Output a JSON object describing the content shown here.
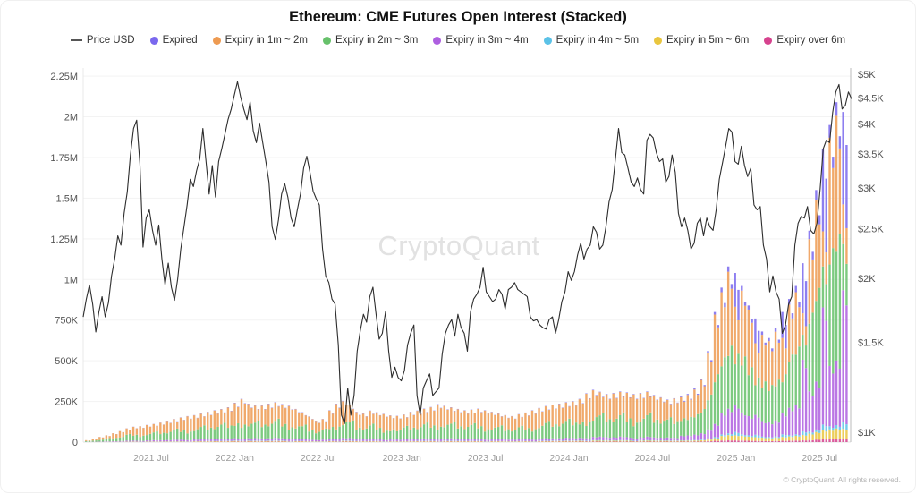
{
  "header": {
    "title": "Ethereum: CME Futures Open Interest (Stacked)"
  },
  "watermark": "CryptoQuant",
  "footer": {
    "copyright": "© CryptoQuant. All rights reserved."
  },
  "legend": [
    {
      "label": "Price USD",
      "type": "line",
      "color": "#4a4a4a"
    },
    {
      "label": "Expired",
      "type": "dot",
      "color": "#7a68ee"
    },
    {
      "label": "Expiry in 1m ~ 2m",
      "type": "dot",
      "color": "#ee9b52"
    },
    {
      "label": "Expiry in 2m ~ 3m",
      "type": "dot",
      "color": "#67c16b"
    },
    {
      "label": "Expiry in 3m ~ 4m",
      "type": "dot",
      "color": "#ae5fe0"
    },
    {
      "label": "Expiry in 4m ~ 5m",
      "type": "dot",
      "color": "#5bc2e7"
    },
    {
      "label": "Expiry in 5m ~ 6m",
      "type": "dot",
      "color": "#e9c63f"
    },
    {
      "label": "Expiry over 6m",
      "type": "dot",
      "color": "#d6428e"
    }
  ],
  "chart_data": {
    "type": "bar",
    "subtype": "stacked-bars-with-log-price-line",
    "title": "Ethereum: CME Futures Open Interest (Stacked)",
    "x_range": [
      "2021 Feb",
      "2025 Sep"
    ],
    "x_ticks": [
      "2021 Jul",
      "2022 Jan",
      "2022 Jul",
      "2023 Jan",
      "2023 Jul",
      "2024 Jan",
      "2024 Jul",
      "2025 Jan",
      "2025 Jul"
    ],
    "y_left": {
      "title": "Open Interest",
      "unit": "contracts",
      "ylim": [
        0,
        2250000
      ],
      "tick_labels": [
        "0",
        "250K",
        "500K",
        "750K",
        "1M",
        "1.25M",
        "1.5M",
        "1.75M",
        "2M",
        "2.25M"
      ],
      "tick_values_k": [
        0,
        250,
        500,
        750,
        1000,
        1250,
        1500,
        1750,
        2000,
        2250
      ]
    },
    "y_right": {
      "title": "Price USD",
      "scale": "log",
      "ylim": [
        950,
        5100
      ],
      "tick_labels": [
        "$1K",
        "$1.5K",
        "$2K",
        "$2.5K",
        "$3K",
        "$3.5K",
        "$4K",
        "$4.5K",
        "$5K"
      ],
      "tick_values_k": [
        1,
        1.5,
        2,
        2.5,
        3,
        3.5,
        4,
        4.5,
        5
      ]
    },
    "grid": "horizontal",
    "legend_position": "top",
    "series_names": [
      "Expired",
      "Expiry in 1m ~ 2m",
      "Expiry in 2m ~ 3m",
      "Expiry in 3m ~ 4m",
      "Expiry in 4m ~ 5m",
      "Expiry in 5m ~ 6m",
      "Expiry over 6m"
    ],
    "stack_order_bottom_to_top": [
      "Expiry over 6m",
      "Expiry in 5m ~ 6m",
      "Expiry in 4m ~ 5m",
      "Expiry in 3m ~ 4m",
      "Expiry in 2m ~ 3m",
      "Expiry in 1m ~ 2m",
      "Expired"
    ],
    "bars_format": "[total_K, pct_expired, pct_1m2m, pct_2m3m, pct_3m4m, pct_4m5m, pct_5m6m, pct_over6m] sampled biweekly Feb 2021 - Sep 2025",
    "bars": [
      [
        12,
        1,
        46,
        42,
        7,
        1,
        2,
        1
      ],
      [
        22,
        1,
        58,
        31,
        6,
        1,
        2,
        1
      ],
      [
        32,
        1,
        58,
        31,
        6,
        1,
        2,
        1
      ],
      [
        42,
        1,
        46,
        42,
        7,
        1,
        2,
        1
      ],
      [
        55,
        1,
        58,
        31,
        6,
        1,
        2,
        1
      ],
      [
        68,
        1,
        58,
        31,
        6,
        1,
        2,
        1
      ],
      [
        85,
        1,
        46,
        42,
        7,
        1,
        2,
        1
      ],
      [
        95,
        1,
        58,
        31,
        6,
        1,
        2,
        1
      ],
      [
        98,
        1,
        66,
        25,
        5,
        1,
        1,
        1
      ],
      [
        106,
        1,
        58,
        31,
        6,
        1,
        2,
        1
      ],
      [
        112,
        1,
        46,
        42,
        7,
        1,
        2,
        1
      ],
      [
        120,
        1,
        58,
        31,
        6,
        1,
        2,
        1
      ],
      [
        132,
        1,
        58,
        31,
        6,
        1,
        2,
        1
      ],
      [
        142,
        1,
        46,
        42,
        7,
        1,
        2,
        1
      ],
      [
        152,
        1,
        58,
        31,
        6,
        1,
        2,
        1
      ],
      [
        160,
        1,
        66,
        25,
        5,
        1,
        1,
        1
      ],
      [
        166,
        1,
        58,
        31,
        6,
        1,
        2,
        1
      ],
      [
        176,
        1,
        46,
        42,
        7,
        1,
        2,
        1
      ],
      [
        186,
        1,
        58,
        31,
        6,
        1,
        2,
        1
      ],
      [
        196,
        1,
        58,
        31,
        6,
        1,
        2,
        1
      ],
      [
        203,
        1,
        46,
        42,
        7,
        1,
        2,
        1
      ],
      [
        214,
        1,
        58,
        31,
        6,
        1,
        2,
        1
      ],
      [
        242,
        1,
        58,
        31,
        6,
        1,
        2,
        1
      ],
      [
        266,
        1,
        66,
        25,
        5,
        1,
        1,
        1
      ],
      [
        236,
        1,
        58,
        31,
        6,
        1,
        2,
        1
      ],
      [
        226,
        1,
        46,
        42,
        7,
        1,
        2,
        1
      ],
      [
        226,
        1,
        58,
        31,
        6,
        1,
        2,
        1
      ],
      [
        236,
        1,
        58,
        31,
        6,
        1,
        2,
        1
      ],
      [
        246,
        1,
        46,
        42,
        7,
        1,
        2,
        1
      ],
      [
        234,
        1,
        58,
        31,
        6,
        1,
        2,
        1
      ],
      [
        224,
        1,
        66,
        25,
        5,
        1,
        1,
        1
      ],
      [
        204,
        1,
        58,
        31,
        6,
        1,
        2,
        1
      ],
      [
        184,
        1,
        46,
        42,
        7,
        1,
        2,
        1
      ],
      [
        158,
        1,
        58,
        31,
        6,
        1,
        2,
        1
      ],
      [
        132,
        1,
        58,
        31,
        6,
        1,
        2,
        1
      ],
      [
        142,
        1,
        46,
        42,
        7,
        1,
        2,
        1
      ],
      [
        196,
        1,
        58,
        31,
        6,
        1,
        2,
        1
      ],
      [
        236,
        1,
        66,
        25,
        5,
        1,
        1,
        1
      ],
      [
        254,
        1,
        58,
        31,
        6,
        1,
        2,
        1
      ],
      [
        228,
        1,
        46,
        42,
        7,
        1,
        2,
        1
      ],
      [
        186,
        1,
        58,
        31,
        6,
        1,
        2,
        1
      ],
      [
        176,
        1,
        58,
        31,
        6,
        1,
        2,
        1
      ],
      [
        194,
        1,
        46,
        42,
        7,
        1,
        2,
        1
      ],
      [
        184,
        1,
        58,
        31,
        6,
        1,
        2,
        1
      ],
      [
        174,
        1,
        66,
        25,
        5,
        1,
        1,
        1
      ],
      [
        164,
        1,
        58,
        31,
        6,
        1,
        2,
        1
      ],
      [
        162,
        1,
        58,
        31,
        6,
        1,
        2,
        1
      ],
      [
        170,
        1,
        46,
        42,
        7,
        1,
        2,
        1
      ],
      [
        186,
        1,
        58,
        31,
        6,
        1,
        2,
        1
      ],
      [
        194,
        1,
        58,
        31,
        6,
        1,
        2,
        1
      ],
      [
        206,
        1,
        46,
        42,
        7,
        1,
        2,
        1
      ],
      [
        216,
        1,
        58,
        31,
        6,
        1,
        2,
        1
      ],
      [
        234,
        1,
        66,
        25,
        5,
        1,
        1,
        1
      ],
      [
        224,
        1,
        58,
        31,
        6,
        1,
        2,
        1
      ],
      [
        214,
        1,
        46,
        42,
        7,
        1,
        2,
        1
      ],
      [
        204,
        1,
        58,
        31,
        6,
        1,
        2,
        1
      ],
      [
        196,
        1,
        58,
        31,
        6,
        1,
        2,
        1
      ],
      [
        200,
        1,
        46,
        42,
        7,
        1,
        2,
        1
      ],
      [
        206,
        1,
        58,
        31,
        6,
        1,
        2,
        1
      ],
      [
        196,
        1,
        66,
        25,
        5,
        1,
        1,
        1
      ],
      [
        186,
        1,
        58,
        31,
        6,
        1,
        2,
        1
      ],
      [
        176,
        1,
        46,
        42,
        7,
        1,
        2,
        1
      ],
      [
        166,
        1,
        58,
        31,
        6,
        1,
        2,
        1
      ],
      [
        160,
        1,
        58,
        31,
        6,
        1,
        2,
        1
      ],
      [
        172,
        1,
        46,
        42,
        7,
        1,
        2,
        1
      ],
      [
        182,
        1,
        58,
        31,
        6,
        1,
        2,
        1
      ],
      [
        196,
        1,
        66,
        25,
        5,
        1,
        1,
        1
      ],
      [
        210,
        1,
        58,
        31,
        6,
        1,
        2,
        1
      ],
      [
        222,
        1,
        46,
        42,
        7,
        1,
        2,
        1
      ],
      [
        230,
        1,
        58,
        31,
        6,
        1,
        2,
        1
      ],
      [
        236,
        1,
        58,
        31,
        6,
        1,
        2,
        1
      ],
      [
        246,
        1,
        46,
        42,
        7,
        1,
        2,
        1
      ],
      [
        252,
        1,
        58,
        31,
        6,
        1,
        2,
        1
      ],
      [
        266,
        1,
        58,
        31,
        6,
        1,
        2,
        1
      ],
      [
        300,
        1,
        66,
        25,
        5,
        1,
        1,
        1
      ],
      [
        322,
        1,
        58,
        31,
        6,
        1,
        2,
        1
      ],
      [
        310,
        1,
        46,
        42,
        7,
        1,
        2,
        1
      ],
      [
        296,
        1,
        58,
        31,
        6,
        1,
        2,
        1
      ],
      [
        302,
        1,
        58,
        31,
        6,
        1,
        2,
        1
      ],
      [
        312,
        1,
        46,
        42,
        7,
        1,
        2,
        1
      ],
      [
        306,
        1,
        58,
        31,
        6,
        1,
        2,
        1
      ],
      [
        296,
        1,
        66,
        25,
        5,
        1,
        1,
        1
      ],
      [
        302,
        1,
        58,
        31,
        6,
        1,
        2,
        1
      ],
      [
        312,
        1,
        46,
        42,
        7,
        1,
        2,
        1
      ],
      [
        290,
        1,
        58,
        31,
        6,
        1,
        2,
        1
      ],
      [
        276,
        1,
        58,
        31,
        6,
        1,
        2,
        1
      ],
      [
        262,
        1,
        46,
        42,
        7,
        1,
        2,
        1
      ],
      [
        270,
        1,
        58,
        31,
        6,
        1,
        2,
        1
      ],
      [
        282,
        2,
        52,
        32,
        10,
        1,
        2,
        1
      ],
      [
        296,
        2,
        52,
        32,
        10,
        1,
        2,
        1
      ],
      [
        330,
        2,
        52,
        32,
        10,
        1,
        2,
        1
      ],
      [
        390,
        2,
        52,
        32,
        10,
        1,
        2,
        1
      ],
      [
        560,
        2,
        52,
        32,
        10,
        1,
        2,
        1
      ],
      [
        800,
        2,
        52,
        32,
        10,
        1,
        2,
        1
      ],
      [
        950,
        3,
        48,
        30,
        14,
        1,
        3,
        1
      ],
      [
        1080,
        3,
        48,
        30,
        14,
        1,
        3,
        1
      ],
      [
        1040,
        20,
        34,
        24,
        16,
        2,
        3,
        1
      ],
      [
        960,
        3,
        48,
        30,
        14,
        1,
        3,
        1
      ],
      [
        840,
        3,
        48,
        30,
        14,
        1,
        3,
        1
      ],
      [
        760,
        20,
        34,
        24,
        16,
        2,
        3,
        1
      ],
      [
        680,
        3,
        48,
        30,
        14,
        1,
        3,
        1
      ],
      [
        640,
        3,
        48,
        30,
        14,
        1,
        3,
        1
      ],
      [
        700,
        3,
        48,
        30,
        14,
        1,
        3,
        1
      ],
      [
        800,
        20,
        34,
        24,
        16,
        2,
        3,
        1
      ],
      [
        880,
        4,
        40,
        32,
        19,
        1,
        3,
        1
      ],
      [
        960,
        4,
        40,
        32,
        19,
        1,
        3,
        1
      ],
      [
        1100,
        28,
        12,
        14,
        40,
        2,
        3,
        1
      ],
      [
        1300,
        4,
        40,
        32,
        19,
        1,
        3,
        1
      ],
      [
        1550,
        4,
        40,
        32,
        19,
        1,
        3,
        1
      ],
      [
        1800,
        28,
        12,
        14,
        40,
        2,
        3,
        1
      ],
      [
        1950,
        4,
        40,
        32,
        19,
        1,
        3,
        1
      ],
      [
        2090,
        4,
        40,
        32,
        19,
        1,
        3,
        1
      ],
      [
        2030,
        28,
        12,
        14,
        40,
        2,
        3,
        1
      ]
    ],
    "price_format": "ETH price in USD thousands, evenly spaced Feb 2021 - Sep 2025",
    "price_usd_k": [
      1.68,
      1.82,
      1.94,
      1.78,
      1.57,
      1.72,
      1.84,
      1.68,
      1.79,
      2.02,
      2.18,
      2.42,
      2.32,
      2.68,
      2.95,
      3.48,
      3.92,
      4.07,
      3.35,
      2.3,
      2.62,
      2.72,
      2.48,
      2.32,
      2.54,
      2.18,
      1.94,
      2.14,
      1.92,
      1.81,
      1.99,
      2.28,
      2.52,
      2.78,
      3.12,
      3.02,
      3.24,
      3.42,
      3.92,
      3.38,
      2.92,
      3.32,
      2.88,
      3.38,
      3.58,
      3.82,
      4.08,
      4.28,
      4.56,
      4.84,
      4.52,
      4.28,
      4.08,
      4.42,
      3.88,
      3.68,
      4.02,
      3.68,
      3.38,
      3.08,
      2.52,
      2.38,
      2.6,
      2.92,
      3.06,
      2.88,
      2.62,
      2.52,
      2.72,
      2.92,
      3.28,
      3.46,
      3.22,
      2.96,
      2.86,
      2.78,
      2.28,
      2.02,
      1.96,
      1.82,
      1.78,
      1.48,
      1.08,
      1.04,
      1.22,
      1.08,
      1.18,
      1.44,
      1.58,
      1.7,
      1.64,
      1.84,
      1.92,
      1.7,
      1.52,
      1.56,
      1.72,
      1.44,
      1.28,
      1.34,
      1.28,
      1.26,
      1.32,
      1.48,
      1.56,
      1.62,
      1.18,
      1.08,
      1.22,
      1.26,
      1.3,
      1.18,
      1.2,
      1.22,
      1.42,
      1.56,
      1.62,
      1.66,
      1.54,
      1.7,
      1.6,
      1.56,
      1.44,
      1.72,
      1.82,
      1.86,
      1.92,
      2.1,
      1.88,
      1.84,
      1.8,
      1.82,
      1.9,
      1.86,
      1.74,
      1.9,
      1.92,
      1.96,
      1.9,
      1.88,
      1.86,
      1.84,
      1.68,
      1.65,
      1.66,
      1.62,
      1.6,
      1.59,
      1.66,
      1.68,
      1.56,
      1.66,
      1.8,
      1.88,
      2.06,
      1.98,
      2.06,
      2.22,
      2.34,
      2.18,
      2.28,
      2.32,
      2.52,
      2.46,
      2.28,
      2.32,
      2.52,
      2.82,
      2.98,
      3.42,
      3.92,
      3.52,
      3.48,
      3.28,
      3.08,
      3.02,
      3.14,
      2.98,
      2.92,
      3.72,
      3.82,
      3.76,
      3.52,
      3.38,
      3.42,
      3.08,
      3.16,
      3.48,
      3.22,
      2.68,
      2.52,
      2.62,
      2.48,
      2.28,
      2.34,
      2.56,
      2.62,
      2.42,
      2.62,
      2.52,
      2.48,
      2.72,
      3.12,
      3.36,
      3.62,
      3.92,
      3.86,
      3.38,
      3.34,
      3.62,
      3.32,
      3.16,
      3.28,
      2.78,
      2.72,
      2.76,
      2.32,
      2.18,
      1.88,
      2.02,
      1.88,
      1.82,
      1.56,
      1.62,
      1.78,
      1.84,
      2.32,
      2.56,
      2.64,
      2.62,
      2.76,
      2.48,
      2.44,
      2.56,
      2.98,
      3.58,
      3.72,
      3.68,
      4.22,
      4.62,
      4.78,
      4.28,
      4.35,
      4.62,
      4.48
    ]
  }
}
